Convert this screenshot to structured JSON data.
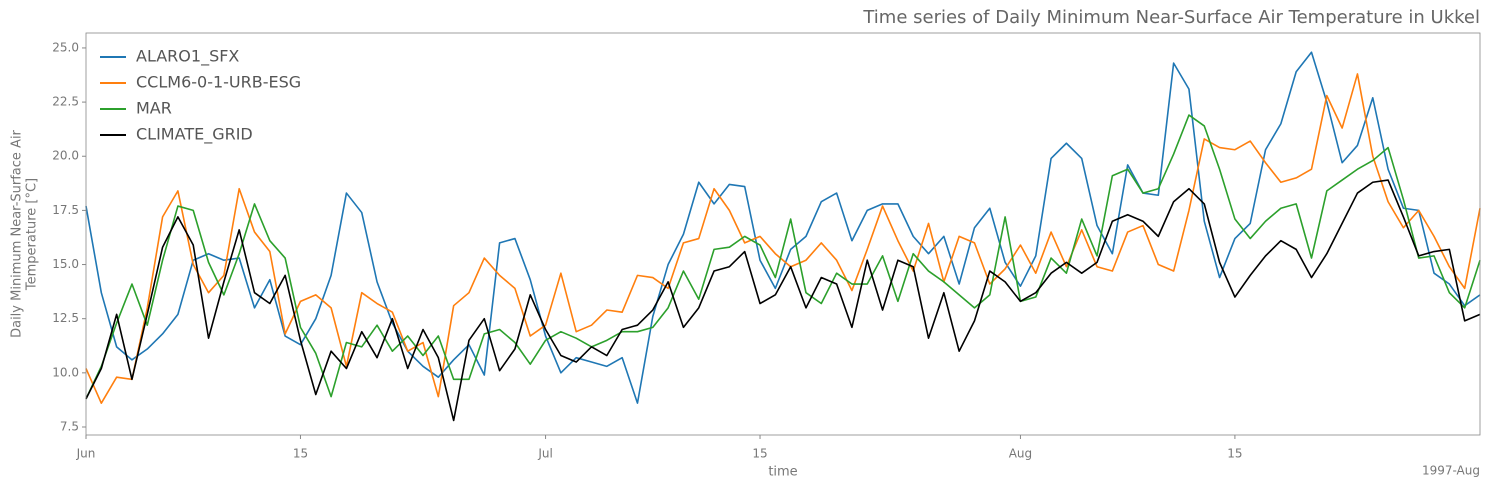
{
  "chart_data": {
    "type": "line",
    "title": "Time series of Daily Minimum Near-Surface Air Temperature in Ukkel",
    "xlabel": "time",
    "ylabel": "Daily Minimum Near-Surface Air\nTemperature [°C]",
    "x_offset_label": "1997-Aug",
    "legend": "upper left",
    "grid": false,
    "x": [
      "1997-06-01",
      "1997-06-02",
      "1997-06-03",
      "1997-06-04",
      "1997-06-05",
      "1997-06-06",
      "1997-06-07",
      "1997-06-08",
      "1997-06-09",
      "1997-06-10",
      "1997-06-11",
      "1997-06-12",
      "1997-06-13",
      "1997-06-14",
      "1997-06-15",
      "1997-06-16",
      "1997-06-17",
      "1997-06-18",
      "1997-06-19",
      "1997-06-20",
      "1997-06-21",
      "1997-06-22",
      "1997-06-23",
      "1997-06-24",
      "1997-06-25",
      "1997-06-26",
      "1997-06-27",
      "1997-06-28",
      "1997-06-29",
      "1997-06-30",
      "1997-07-01",
      "1997-07-02",
      "1997-07-03",
      "1997-07-04",
      "1997-07-05",
      "1997-07-06",
      "1997-07-07",
      "1997-07-08",
      "1997-07-09",
      "1997-07-10",
      "1997-07-11",
      "1997-07-12",
      "1997-07-13",
      "1997-07-14",
      "1997-07-15",
      "1997-07-16",
      "1997-07-17",
      "1997-07-18",
      "1997-07-19",
      "1997-07-20",
      "1997-07-21",
      "1997-07-22",
      "1997-07-23",
      "1997-07-24",
      "1997-07-25",
      "1997-07-26",
      "1997-07-27",
      "1997-07-28",
      "1997-07-29",
      "1997-07-30",
      "1997-07-31",
      "1997-08-01",
      "1997-08-02",
      "1997-08-03",
      "1997-08-04",
      "1997-08-05",
      "1997-08-06",
      "1997-08-07",
      "1997-08-08",
      "1997-08-09",
      "1997-08-10",
      "1997-08-11",
      "1997-08-12",
      "1997-08-13",
      "1997-08-14",
      "1997-08-15",
      "1997-08-16",
      "1997-08-17",
      "1997-08-18",
      "1997-08-19",
      "1997-08-20",
      "1997-08-21",
      "1997-08-22",
      "1997-08-23",
      "1997-08-24",
      "1997-08-25",
      "1997-08-26",
      "1997-08-27",
      "1997-08-28",
      "1997-08-29",
      "1997-08-30",
      "1997-08-31"
    ],
    "xlim": [
      "1997-06-01",
      "1997-08-31"
    ],
    "xticks": [
      {
        "value": "1997-06-01",
        "label": "Jun"
      },
      {
        "value": "1997-06-15",
        "label": "15"
      },
      {
        "value": "1997-07-01",
        "label": "Jul"
      },
      {
        "value": "1997-07-15",
        "label": "15"
      },
      {
        "value": "1997-08-01",
        "label": "Aug"
      },
      {
        "value": "1997-08-15",
        "label": "15"
      }
    ],
    "ylim": [
      7.13,
      25.69
    ],
    "yticks": [
      7.5,
      {
        "value": 10,
        "label": "10.0"
      },
      12.5,
      {
        "value": 15,
        "label": "15.0"
      },
      17.5,
      {
        "value": 20,
        "label": "20.0"
      },
      22.5,
      {
        "value": 25,
        "label": "25.0"
      }
    ],
    "series": [
      {
        "name": "ALARO1_SFX",
        "color": "#1f77b4",
        "values": [
          17.7,
          13.7,
          11.2,
          10.6,
          11.1,
          11.8,
          12.7,
          15.2,
          15.5,
          15.2,
          15.3,
          13.0,
          14.3,
          11.7,
          11.3,
          12.5,
          14.5,
          18.3,
          17.4,
          14.2,
          12.3,
          11.0,
          10.3,
          9.8,
          10.6,
          11.3,
          9.9,
          16.0,
          16.2,
          14.3,
          11.7,
          10.0,
          10.7,
          10.5,
          10.3,
          10.7,
          8.6,
          12.6,
          15.0,
          16.4,
          18.8,
          17.8,
          18.7,
          18.6,
          15.2,
          13.9,
          15.7,
          16.3,
          17.9,
          18.3,
          16.1,
          17.5,
          17.8,
          17.8,
          16.3,
          15.5,
          16.3,
          14.1,
          16.7,
          17.6,
          15.1,
          14.0,
          15.4,
          19.9,
          20.6,
          19.9,
          16.8,
          15.5,
          19.6,
          18.3,
          18.2,
          24.3,
          23.1,
          17.0,
          14.4,
          16.2,
          16.9,
          20.3,
          21.5,
          23.9,
          24.8,
          22.5,
          19.7,
          20.5,
          22.7,
          19.4,
          17.6,
          17.5,
          14.6,
          14.1,
          13.1,
          13.6
        ]
      },
      {
        "name": "CCLM6-0-1-URB-ESG",
        "color": "#ff7f0e",
        "values": [
          10.2,
          8.6,
          9.8,
          9.7,
          13.0,
          17.2,
          18.4,
          15.0,
          13.7,
          14.5,
          18.5,
          16.5,
          15.6,
          11.8,
          13.3,
          13.6,
          13.0,
          10.3,
          13.7,
          13.2,
          12.8,
          11.0,
          11.4,
          8.9,
          13.1,
          13.7,
          15.3,
          14.5,
          13.9,
          11.7,
          12.2,
          14.6,
          11.9,
          12.2,
          12.9,
          12.8,
          14.5,
          14.4,
          13.9,
          16.0,
          16.2,
          18.5,
          17.5,
          16.0,
          16.3,
          15.5,
          14.9,
          15.2,
          16.0,
          15.2,
          13.8,
          15.7,
          17.7,
          16.1,
          14.7,
          16.9,
          14.2,
          16.3,
          16.0,
          14.1,
          14.8,
          15.9,
          14.6,
          16.5,
          14.9,
          16.6,
          14.9,
          14.7,
          16.5,
          16.8,
          15.0,
          14.7,
          17.5,
          20.8,
          20.4,
          20.3,
          20.7,
          19.7,
          18.8,
          19.0,
          19.4,
          22.8,
          21.3,
          23.8,
          20.0,
          17.9,
          16.7,
          17.5,
          16.3,
          14.9,
          13.9,
          17.6
        ]
      },
      {
        "name": "MAR",
        "color": "#2ca02c",
        "values": [
          8.8,
          10.3,
          12.3,
          14.1,
          12.2,
          15.2,
          17.7,
          17.5,
          15.1,
          13.6,
          15.5,
          17.8,
          16.1,
          15.3,
          12.1,
          10.9,
          8.9,
          11.4,
          11.2,
          12.2,
          11.0,
          11.7,
          10.8,
          11.7,
          9.7,
          9.7,
          11.8,
          12.0,
          11.4,
          10.4,
          11.5,
          11.9,
          11.6,
          11.2,
          11.5,
          11.9,
          11.9,
          12.1,
          13.0,
          14.7,
          13.4,
          15.7,
          15.8,
          16.3,
          15.9,
          14.4,
          17.1,
          13.7,
          13.2,
          14.6,
          14.1,
          14.1,
          15.4,
          13.3,
          15.5,
          14.7,
          14.2,
          13.6,
          13.0,
          13.6,
          17.2,
          13.3,
          13.5,
          15.3,
          14.6,
          17.1,
          15.4,
          19.1,
          19.4,
          18.3,
          18.5,
          20.1,
          21.9,
          21.4,
          19.4,
          17.1,
          16.2,
          17.0,
          17.6,
          17.8,
          15.3,
          18.4,
          18.9,
          19.4,
          19.8,
          20.4,
          18.0,
          15.3,
          15.4,
          13.7,
          13.0,
          15.2
        ]
      },
      {
        "name": "CLIMATE_GRID",
        "color": "#000000",
        "values": [
          8.8,
          10.2,
          12.7,
          9.7,
          12.7,
          15.8,
          17.2,
          15.9,
          11.6,
          14.2,
          16.6,
          13.7,
          13.2,
          14.5,
          11.5,
          9.0,
          11.0,
          10.2,
          11.9,
          10.7,
          12.5,
          10.2,
          12.0,
          10.7,
          7.8,
          11.5,
          12.5,
          10.1,
          11.1,
          13.6,
          12.0,
          10.8,
          10.5,
          11.2,
          10.8,
          12.0,
          12.2,
          12.9,
          14.2,
          12.1,
          13.0,
          14.7,
          14.9,
          15.6,
          13.2,
          13.6,
          14.9,
          13.0,
          14.4,
          14.1,
          12.1,
          15.2,
          12.9,
          15.2,
          14.9,
          11.6,
          13.7,
          11.0,
          12.4,
          14.7,
          14.2,
          13.3,
          13.7,
          14.6,
          15.1,
          14.6,
          15.1,
          17.0,
          17.3,
          17.0,
          16.3,
          17.9,
          18.5,
          17.8,
          15.1,
          13.5,
          14.5,
          15.4,
          16.1,
          15.7,
          14.4,
          15.5,
          16.9,
          18.3,
          18.8,
          18.9,
          17.2,
          15.4,
          15.6,
          15.7,
          12.4,
          12.7
        ]
      }
    ]
  }
}
